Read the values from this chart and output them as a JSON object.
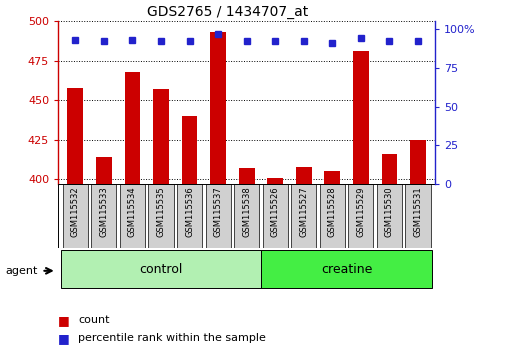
{
  "title": "GDS2765 / 1434707_at",
  "samples": [
    "GSM115532",
    "GSM115533",
    "GSM115534",
    "GSM115535",
    "GSM115536",
    "GSM115537",
    "GSM115538",
    "GSM115526",
    "GSM115527",
    "GSM115528",
    "GSM115529",
    "GSM115530",
    "GSM115531"
  ],
  "counts": [
    458,
    414,
    468,
    457,
    440,
    493,
    407,
    401,
    408,
    405,
    481,
    416,
    425
  ],
  "percentiles": [
    93,
    92,
    93,
    92,
    92,
    97,
    92,
    92,
    92,
    91,
    94,
    92,
    92
  ],
  "groups": [
    {
      "label": "control",
      "start": 0,
      "end": 7,
      "color": "#b2f0b2"
    },
    {
      "label": "creatine",
      "start": 7,
      "end": 13,
      "color": "#44ee44"
    }
  ],
  "ylim_left": [
    397,
    500
  ],
  "ylim_right": [
    0,
    105
  ],
  "yticks_left": [
    400,
    425,
    450,
    475,
    500
  ],
  "yticks_right": [
    0,
    25,
    50,
    75,
    100
  ],
  "ytick_right_labels": [
    "0",
    "25",
    "50",
    "75",
    "100%"
  ],
  "bar_color": "#cc0000",
  "dot_color": "#2222cc",
  "background_color": "#ffffff",
  "agent_label": "agent",
  "legend_count": "count",
  "legend_percentile": "percentile rank within the sample"
}
